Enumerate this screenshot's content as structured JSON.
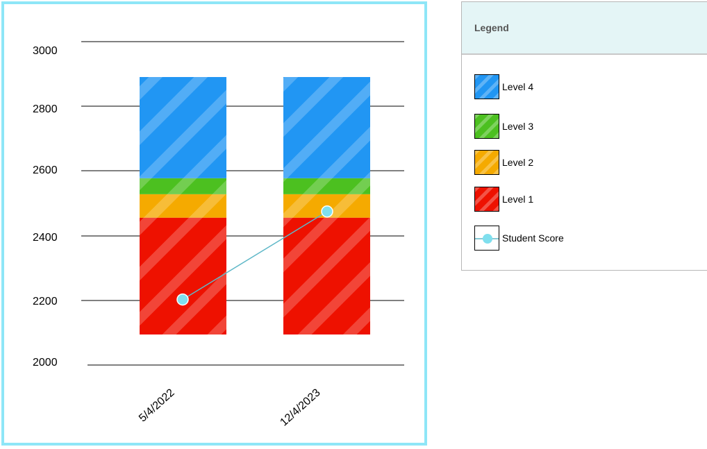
{
  "chart_data": {
    "type": "bar",
    "stacked": true,
    "categories": [
      "5/4/2022",
      "12/4/2023"
    ],
    "y_ticks": [
      "3000",
      "2800",
      "2600",
      "2400",
      "2200",
      "2000"
    ],
    "ylim": [
      2000,
      3000
    ],
    "grid": true,
    "bar_range": [
      2095,
      2890
    ],
    "series": [
      {
        "name": "Level 1",
        "color": "#ee1100",
        "values": [
          [
            2095,
            2456
          ],
          [
            2095,
            2456
          ]
        ]
      },
      {
        "name": "Level 2",
        "color": "#f5aa00",
        "values": [
          [
            2456,
            2528
          ],
          [
            2456,
            2528
          ]
        ]
      },
      {
        "name": "Level 3",
        "color": "#4cc020",
        "values": [
          [
            2528,
            2577
          ],
          [
            2528,
            2577
          ]
        ]
      },
      {
        "name": "Level 4",
        "color": "#2196f3",
        "values": [
          [
            2577,
            2890
          ],
          [
            2577,
            2890
          ]
        ]
      }
    ],
    "line_series": {
      "name": "Student Score",
      "color": "#7fdfee",
      "values": [
        2203,
        2475
      ]
    }
  },
  "legend": {
    "title": "Legend",
    "items": [
      {
        "label": "Level 4",
        "color": "#2196f3"
      },
      {
        "label": "Level 3",
        "color": "#4cc020"
      },
      {
        "label": "Level 2",
        "color": "#f5aa00"
      },
      {
        "label": "Level 1",
        "color": "#ee1100"
      },
      {
        "label": "Student Score",
        "color": "#7fdfee"
      }
    ]
  }
}
